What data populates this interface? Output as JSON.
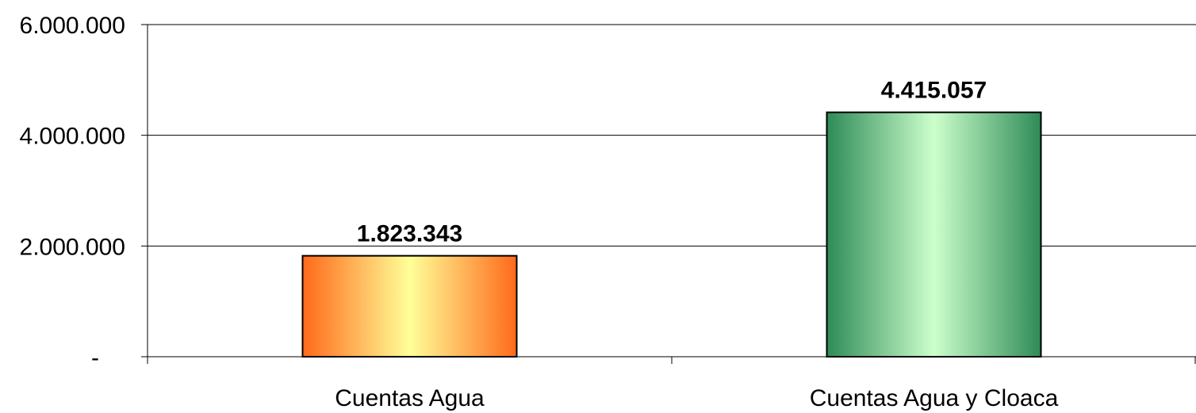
{
  "chart_data": {
    "type": "bar",
    "title": "",
    "xlabel": "",
    "ylabel": "",
    "categories": [
      "Cuentas Agua",
      "Cuentas Agua y Cloaca"
    ],
    "values": [
      1823343,
      4415057
    ],
    "data_labels": [
      "1.823.343",
      "4.415.057"
    ],
    "ylim": [
      0,
      6000000
    ],
    "y_ticks": [
      {
        "value": 0,
        "label": "-"
      },
      {
        "value": 2000000,
        "label": "2.000.000"
      },
      {
        "value": 4000000,
        "label": "4.000.000"
      },
      {
        "value": 6000000,
        "label": "6.000.000"
      }
    ],
    "grid": true,
    "legend": "none",
    "bar_colors": [
      {
        "edge": "#ff6a1a",
        "center": "#ffff99"
      },
      {
        "edge": "#2e8b57",
        "center": "#ccffcc"
      }
    ]
  }
}
